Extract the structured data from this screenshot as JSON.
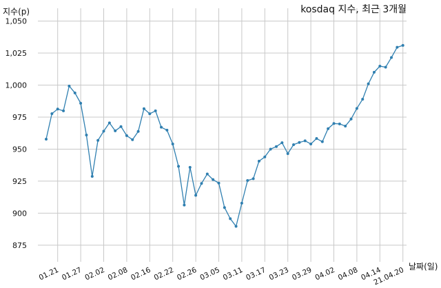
{
  "chart_data": {
    "type": "line",
    "title": "kosdaq 지수, 최근 3개월",
    "xlabel": "날짜(일)",
    "ylabel": "지수(p)",
    "ylim": [
      862,
      1060
    ],
    "yticks": [
      875,
      900,
      925,
      950,
      975,
      1000,
      1025,
      1050
    ],
    "ytick_labels": [
      "875",
      "900",
      "925",
      "950",
      "975",
      "1,000",
      "1,025",
      "1,050"
    ],
    "xtick_labels": [
      "01.21",
      "01.27",
      "02.02",
      "02.08",
      "02.16",
      "02.22",
      "02.26",
      "03.05",
      "03.11",
      "03.17",
      "03.23",
      "03.29",
      "04.02",
      "04.08",
      "04.14",
      "21.04.20"
    ],
    "xtick_index": [
      2,
      6,
      10,
      14,
      18,
      22,
      26,
      30,
      34,
      38,
      42,
      46,
      50,
      54,
      58,
      62
    ],
    "grid": true,
    "color": "#2f7fb0",
    "series": [
      {
        "values": [
          957.8,
          977.7,
          981.3,
          979.9,
          999.3,
          993.9,
          985.8,
          961,
          928.7,
          956.8,
          964.0,
          970.5,
          964.3,
          967.6,
          960.5,
          957.4,
          963.8,
          981.6,
          977.6,
          979.9,
          967.1,
          964.8,
          954.0,
          936.6,
          906.3,
          935.8,
          913.9,
          923.2,
          930.6,
          926.2,
          923.5,
          904.4,
          895.7,
          889.7,
          907.8,
          925.5,
          926.9,
          940.6,
          943.9,
          950.0,
          952.0,
          955.0,
          946.5,
          953.5,
          955.2,
          956.5,
          954.0,
          958.3,
          955.8,
          966.0,
          970.0,
          969.7,
          968.0,
          973.5,
          981.8,
          989.0,
          1001.0,
          1010.0,
          1014.8,
          1014.0,
          1021.5,
          1029.5,
          1031.0
        ]
      }
    ]
  }
}
